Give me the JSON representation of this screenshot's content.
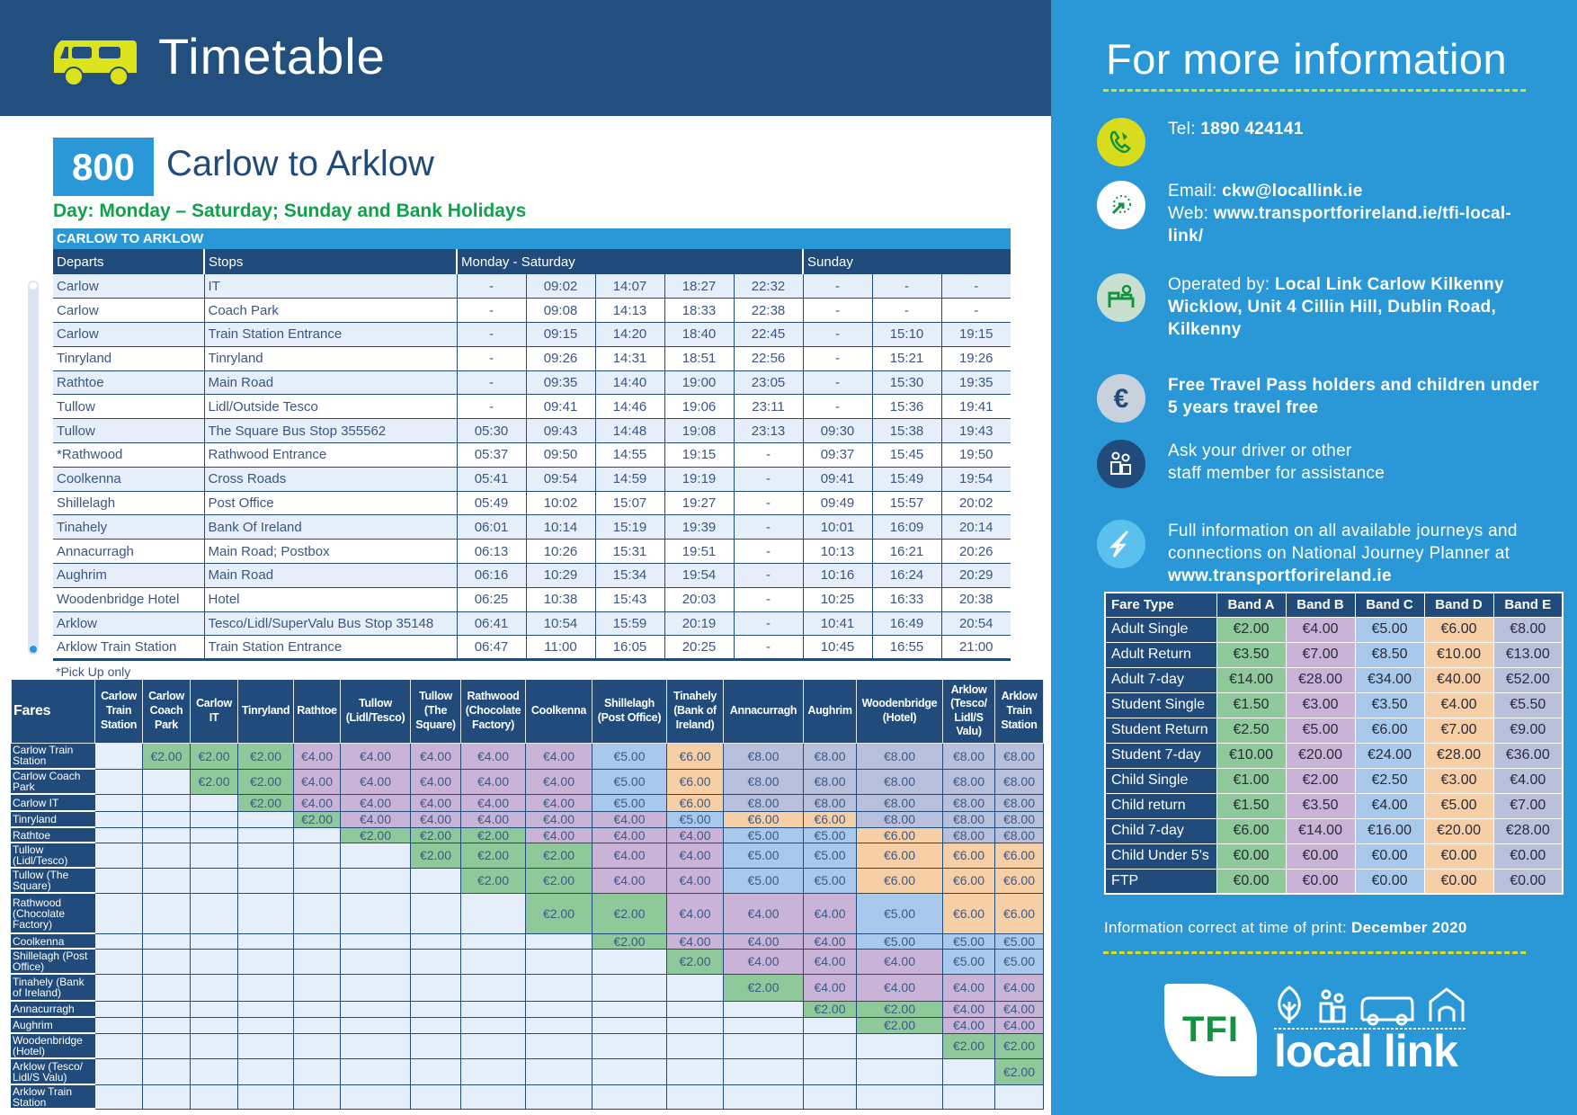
{
  "header": {
    "title": "Timetable",
    "icon": "bus-icon"
  },
  "route": {
    "number": "800",
    "title": "Carlow to Arklow",
    "days": "Day: Monday – Saturday; Sunday and Bank Holidays"
  },
  "timetable": {
    "direction": "CARLOW TO ARKLOW",
    "columns": {
      "departs": "Departs",
      "stops": "Stops",
      "mon_sat": "Monday - Saturday",
      "sunday": "Sunday"
    },
    "rows": [
      {
        "departs": "Carlow",
        "stop": "IT",
        "times": [
          "-",
          "09:02",
          "14:07",
          "18:27",
          "22:32",
          "-",
          "-",
          "-"
        ]
      },
      {
        "departs": "Carlow",
        "stop": "Coach Park",
        "times": [
          "-",
          "09:08",
          "14:13",
          "18:33",
          "22:38",
          "-",
          "-",
          "-"
        ]
      },
      {
        "departs": "Carlow",
        "stop": "Train Station Entrance",
        "times": [
          "-",
          "09:15",
          "14:20",
          "18:40",
          "22:45",
          "-",
          "15:10",
          "19:15"
        ]
      },
      {
        "departs": "Tinryland",
        "stop": "Tinryland",
        "times": [
          "-",
          "09:26",
          "14:31",
          "18:51",
          "22:56",
          "-",
          "15:21",
          "19:26"
        ]
      },
      {
        "departs": "Rathtoe",
        "stop": "Main Road",
        "times": [
          "-",
          "09:35",
          "14:40",
          "19:00",
          "23:05",
          "-",
          "15:30",
          "19:35"
        ]
      },
      {
        "departs": "Tullow",
        "stop": "Lidl/Outside Tesco",
        "times": [
          "-",
          "09:41",
          "14:46",
          "19:06",
          "23:11",
          "-",
          "15:36",
          "19:41"
        ]
      },
      {
        "departs": "Tullow",
        "stop": "The Square Bus Stop 355562",
        "times": [
          "05:30",
          "09:43",
          "14:48",
          "19:08",
          "23:13",
          "09:30",
          "15:38",
          "19:43"
        ]
      },
      {
        "departs": "*Rathwood",
        "stop": "Rathwood Entrance",
        "times": [
          "05:37",
          "09:50",
          "14:55",
          "19:15",
          "-",
          "09:37",
          "15:45",
          "19:50"
        ]
      },
      {
        "departs": "Coolkenna",
        "stop": "Cross Roads",
        "times": [
          "05:41",
          "09:54",
          "14:59",
          "19:19",
          "-",
          "09:41",
          "15:49",
          "19:54"
        ]
      },
      {
        "departs": "Shillelagh",
        "stop": "Post Office",
        "times": [
          "05:49",
          "10:02",
          "15:07",
          "19:27",
          "-",
          "09:49",
          "15:57",
          "20:02"
        ]
      },
      {
        "departs": "Tinahely",
        "stop": "Bank Of Ireland",
        "times": [
          "06:01",
          "10:14",
          "15:19",
          "19:39",
          "-",
          "10:01",
          "16:09",
          "20:14"
        ]
      },
      {
        "departs": "Annacurragh",
        "stop": "Main Road; Postbox",
        "times": [
          "06:13",
          "10:26",
          "15:31",
          "19:51",
          "-",
          "10:13",
          "16:21",
          "20:26"
        ]
      },
      {
        "departs": "Aughrim",
        "stop": "Main Road",
        "times": [
          "06:16",
          "10:29",
          "15:34",
          "19:54",
          "-",
          "10:16",
          "16:24",
          "20:29"
        ]
      },
      {
        "departs": "Woodenbridge Hotel",
        "stop": "Hotel",
        "times": [
          "06:25",
          "10:38",
          "15:43",
          "20:03",
          "-",
          "10:25",
          "16:33",
          "20:38"
        ]
      },
      {
        "departs": "Arklow",
        "stop": "Tesco/Lidl/SuperValu Bus Stop 35148",
        "times": [
          "06:41",
          "10:54",
          "15:59",
          "20:19",
          "-",
          "10:41",
          "16:49",
          "20:54"
        ]
      },
      {
        "departs": "Arklow Train Station",
        "stop": "Train Station Entrance",
        "times": [
          "06:47",
          "11:00",
          "16:05",
          "20:25",
          "-",
          "10:45",
          "16:55",
          "21:00"
        ]
      }
    ],
    "footnote": "*Pick Up only"
  },
  "fares": {
    "corner": "Fares",
    "columns": [
      "Carlow Train Station",
      "Carlow Coach Park",
      "Carlow IT",
      "Tinryland",
      "Rathtoe",
      "Tullow (Lidl/Tesco)",
      "Tullow (The Square)",
      "Rathwood (Chocolate Factory)",
      "Coolkenna",
      "Shillelagh (Post Office)",
      "Tinahely (Bank of Ireland)",
      "Annacurragh",
      "Aughrim",
      "Woodenbridge (Hotel)",
      "Arklow (Tesco/ Lidl/S Valu)",
      "Arklow Train Station"
    ],
    "rows": [
      {
        "label": "Carlow Train Station",
        "cells": [
          "",
          "€2.00",
          "€2.00",
          "€2.00",
          "€4.00",
          "€4.00",
          "€4.00",
          "€4.00",
          "€4.00",
          "€5.00",
          "€6.00",
          "€8.00",
          "€8.00",
          "€8.00",
          "€8.00",
          "€8.00"
        ]
      },
      {
        "label": "Carlow Coach Park",
        "cells": [
          "",
          "",
          "€2.00",
          "€2.00",
          "€4.00",
          "€4.00",
          "€4.00",
          "€4.00",
          "€4.00",
          "€5.00",
          "€6.00",
          "€8.00",
          "€8.00",
          "€8.00",
          "€8.00",
          "€8.00"
        ]
      },
      {
        "label": "Carlow IT",
        "cells": [
          "",
          "",
          "",
          "€2.00",
          "€4.00",
          "€4.00",
          "€4.00",
          "€4.00",
          "€4.00",
          "€5.00",
          "€6.00",
          "€8.00",
          "€8.00",
          "€8.00",
          "€8.00",
          "€8.00"
        ]
      },
      {
        "label": "Tinryland",
        "cells": [
          "",
          "",
          "",
          "",
          "€2.00",
          "€4.00",
          "€4.00",
          "€4.00",
          "€4.00",
          "€4.00",
          "€5.00",
          "€6.00",
          "€6.00",
          "€8.00",
          "€8.00",
          "€8.00"
        ]
      },
      {
        "label": "Rathtoe",
        "cells": [
          "",
          "",
          "",
          "",
          "",
          "€2.00",
          "€2.00",
          "€2.00",
          "€4.00",
          "€4.00",
          "€4.00",
          "€5.00",
          "€5.00",
          "€6.00",
          "€8.00",
          "€8.00"
        ]
      },
      {
        "label": "Tullow (Lidl/Tesco)",
        "cells": [
          "",
          "",
          "",
          "",
          "",
          "",
          "€2.00",
          "€2.00",
          "€2.00",
          "€4.00",
          "€4.00",
          "€5.00",
          "€5.00",
          "€6.00",
          "€6.00",
          "€6.00"
        ]
      },
      {
        "label": "Tullow (The Square)",
        "cells": [
          "",
          "",
          "",
          "",
          "",
          "",
          "",
          "€2.00",
          "€2.00",
          "€4.00",
          "€4.00",
          "€5.00",
          "€5.00",
          "€6.00",
          "€6.00",
          "€6.00"
        ]
      },
      {
        "label": "Rathwood (Chocolate Factory)",
        "cells": [
          "",
          "",
          "",
          "",
          "",
          "",
          "",
          "",
          "€2.00",
          "€2.00",
          "€4.00",
          "€4.00",
          "€4.00",
          "€5.00",
          "€6.00",
          "€6.00"
        ]
      },
      {
        "label": "Coolkenna",
        "cells": [
          "",
          "",
          "",
          "",
          "",
          "",
          "",
          "",
          "",
          "€2.00",
          "€4.00",
          "€4.00",
          "€4.00",
          "€5.00",
          "€5.00",
          "€5.00"
        ]
      },
      {
        "label": "Shillelagh (Post Office)",
        "cells": [
          "",
          "",
          "",
          "",
          "",
          "",
          "",
          "",
          "",
          "",
          "€2.00",
          "€4.00",
          "€4.00",
          "€4.00",
          "€5.00",
          "€5.00"
        ]
      },
      {
        "label": "Tinahely (Bank of Ireland)",
        "cells": [
          "",
          "",
          "",
          "",
          "",
          "",
          "",
          "",
          "",
          "",
          "",
          "€2.00",
          "€4.00",
          "€4.00",
          "€4.00",
          "€4.00"
        ]
      },
      {
        "label": "Annacurragh",
        "cells": [
          "",
          "",
          "",
          "",
          "",
          "",
          "",
          "",
          "",
          "",
          "",
          "",
          "€2.00",
          "€2.00",
          "€4.00",
          "€4.00"
        ]
      },
      {
        "label": "Aughrim",
        "cells": [
          "",
          "",
          "",
          "",
          "",
          "",
          "",
          "",
          "",
          "",
          "",
          "",
          "",
          "€2.00",
          "€4.00",
          "€4.00"
        ]
      },
      {
        "label": "Woodenbridge (Hotel)",
        "cells": [
          "",
          "",
          "",
          "",
          "",
          "",
          "",
          "",
          "",
          "",
          "",
          "",
          "",
          "",
          "€2.00",
          "€2.00"
        ]
      },
      {
        "label": "Arklow (Tesco/ Lidl/S Valu)",
        "cells": [
          "",
          "",
          "",
          "",
          "",
          "",
          "",
          "",
          "",
          "",
          "",
          "",
          "",
          "",
          "",
          "€2.00"
        ]
      },
      {
        "label": "Arklow Train Station",
        "cells": [
          "",
          "",
          "",
          "",
          "",
          "",
          "",
          "",
          "",
          "",
          "",
          "",
          "",
          "",
          "",
          ""
        ]
      }
    ],
    "colors": {
      "€2.00": "#8fc99b",
      "€4.00": "#c9b4d7",
      "€5.00": "#a8c9eb",
      "€6.00": "#f6cfa7",
      "€8.00": "#b8c0db"
    }
  },
  "info": {
    "title": "For more information",
    "items": [
      {
        "icon": "phone-icon",
        "parts": [
          {
            "t": "Tel:  "
          },
          {
            "t": "1890 424141",
            "b": true
          }
        ]
      },
      {
        "icon": "web-click-icon",
        "parts": [
          {
            "t": "Email: "
          },
          {
            "t": "ckw@locallink.ie",
            "b": true
          },
          {
            "br": true
          },
          {
            "t": "Web: "
          },
          {
            "t": "www.transportforireland.ie/tfi-local-link/",
            "b": true
          }
        ]
      },
      {
        "icon": "operator-desk-icon",
        "parts": [
          {
            "t": "Operated by: "
          },
          {
            "t": "Local Link Carlow Kilkenny Wicklow, Unit 4 Cillin Hill, Dublin Road, Kilkenny",
            "b": true
          }
        ]
      },
      {
        "icon": "euro-icon",
        "parts": [
          {
            "t": "Free Travel Pass holders and children under 5 years travel free",
            "b": true
          }
        ]
      },
      {
        "icon": "people-icon",
        "parts": [
          {
            "t": "Ask your driver or other"
          },
          {
            "br": true
          },
          {
            "t": "staff member for assistance"
          }
        ]
      },
      {
        "icon": "journey-planner-icon",
        "parts": [
          {
            "t": "Full information on all available journeys and connections on National Journey Planner at "
          },
          {
            "t": "www.transportforireland.ie",
            "b": true
          }
        ]
      }
    ],
    "icon_colors": [
      "#d8dc1c",
      "#ffffff",
      "#c9dfd0",
      "#c9d1dd",
      "#214b7a",
      "#5cc0ee"
    ]
  },
  "bands": {
    "headers": [
      "Fare Type",
      "Band A",
      "Band B",
      "Band C",
      "Band D",
      "Band E"
    ],
    "colors": [
      "#8fc99b",
      "#c9b4d7",
      "#a8c9eb",
      "#f6cfa7",
      "#b8c0db"
    ],
    "rows": [
      [
        "Adult Single",
        "€2.00",
        "€4.00",
        "€5.00",
        "€6.00",
        "€8.00"
      ],
      [
        "Adult Return",
        "€3.50",
        "€7.00",
        "€8.50",
        "€10.00",
        "€13.00"
      ],
      [
        "Adult 7-day",
        "€14.00",
        "€28.00",
        "€34.00",
        "€40.00",
        "€52.00"
      ],
      [
        "Student Single",
        "€1.50",
        "€3.00",
        "€3.50",
        "€4.00",
        "€5.50"
      ],
      [
        "Student Return",
        "€2.50",
        "€5.00",
        "€6.00",
        "€7.00",
        "€9.00"
      ],
      [
        "Student 7-day",
        "€10.00",
        "€20.00",
        "€24.00",
        "€28.00",
        "€36.00"
      ],
      [
        "Child Single",
        "€1.00",
        "€2.00",
        "€2.50",
        "€3.00",
        "€4.00"
      ],
      [
        "Child return",
        "€1.50",
        "€3.50",
        "€4.00",
        "€5.00",
        "€7.00"
      ],
      [
        "Child 7-day",
        "€6.00",
        "€14.00",
        "€16.00",
        "€20.00",
        "€28.00"
      ],
      [
        "Child Under 5's",
        "€0.00",
        "€0.00",
        "€0.00",
        "€0.00",
        "€0.00"
      ],
      [
        "FTP",
        "€0.00",
        "€0.00",
        "€0.00",
        "€0.00",
        "€0.00"
      ]
    ]
  },
  "footer": {
    "correct_label": "Information correct at time of print: ",
    "correct_date": "December 2020",
    "logo_tfi": "TFI",
    "logo_locallink": "local link"
  },
  "colors": {
    "navy": "#224f7e",
    "blue": "#2a97d7",
    "green": "#12a04c",
    "yellow": "#d7e021"
  }
}
